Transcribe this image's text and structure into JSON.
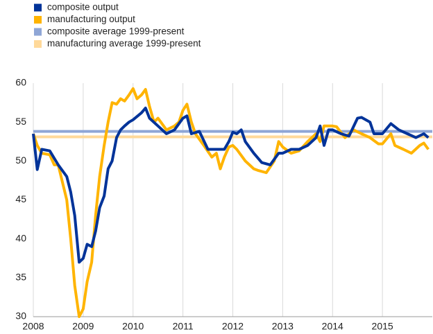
{
  "chart_data": {
    "type": "line",
    "series": [
      {
        "name": "composite output",
        "color": "#003399",
        "x": [
          2008,
          2008.08,
          2008.17,
          2008.33,
          2008.5,
          2008.67,
          2008.75,
          2008.83,
          2008.92,
          2009,
          2009.08,
          2009.17,
          2009.25,
          2009.33,
          2009.42,
          2009.5,
          2009.58,
          2009.67,
          2009.75,
          2009.83,
          2009.92,
          2010,
          2010.17,
          2010.25,
          2010.33,
          2010.5,
          2010.67,
          2010.83,
          2011,
          2011.08,
          2011.17,
          2011.33,
          2011.5,
          2011.67,
          2011.83,
          2011.92,
          2012,
          2012.08,
          2012.17,
          2012.25,
          2012.42,
          2012.58,
          2012.75,
          2012.92,
          2013,
          2013.17,
          2013.33,
          2013.5,
          2013.67,
          2013.75,
          2013.83,
          2013.92,
          2014,
          2014.17,
          2014.33,
          2014.5,
          2014.58,
          2014.75,
          2014.83,
          2015,
          2015.17,
          2015.33,
          2015.5,
          2015.67,
          2015.83,
          2015.92
        ],
        "values": [
          53.5,
          48.9,
          51.5,
          51.3,
          49.5,
          48,
          46,
          43,
          37,
          37.5,
          39.3,
          39,
          41,
          44,
          45.5,
          49,
          50,
          53,
          54,
          54.5,
          55,
          55.3,
          56.2,
          56.8,
          55.5,
          54.5,
          53.5,
          54,
          55.5,
          55.8,
          53.5,
          53.8,
          51.5,
          51.5,
          51.5,
          52.5,
          53.7,
          53.5,
          54,
          52.5,
          51,
          49.8,
          49.5,
          51,
          51,
          51.5,
          51.5,
          52,
          53,
          54.5,
          52,
          54,
          54,
          53.5,
          53.2,
          55.5,
          55.6,
          55,
          53.5,
          53.5,
          54.8,
          54,
          53.5,
          53,
          53.5,
          53
        ]
      },
      {
        "name": "manufacturing output",
        "color": "#ffb400",
        "x": [
          2008,
          2008.08,
          2008.17,
          2008.33,
          2008.42,
          2008.5,
          2008.67,
          2008.75,
          2008.83,
          2008.92,
          2009,
          2009.08,
          2009.17,
          2009.25,
          2009.33,
          2009.42,
          2009.5,
          2009.58,
          2009.67,
          2009.75,
          2009.83,
          2009.92,
          2010,
          2010.08,
          2010.17,
          2010.25,
          2010.33,
          2010.42,
          2010.5,
          2010.67,
          2010.83,
          2010.92,
          2011,
          2011.08,
          2011.17,
          2011.25,
          2011.42,
          2011.58,
          2011.67,
          2011.75,
          2011.83,
          2011.92,
          2012,
          2012.08,
          2012.25,
          2012.42,
          2012.5,
          2012.67,
          2012.83,
          2012.92,
          2013,
          2013.17,
          2013.33,
          2013.5,
          2013.67,
          2013.75,
          2013.83,
          2014,
          2014.08,
          2014.25,
          2014.42,
          2014.58,
          2014.75,
          2014.92,
          2015,
          2015.17,
          2015.25,
          2015.42,
          2015.58,
          2015.75,
          2015.83,
          2015.92
        ],
        "values": [
          53.5,
          52,
          51,
          50.8,
          49.5,
          49.5,
          45,
          40,
          34,
          30,
          31,
          34.5,
          37,
          43,
          48,
          52,
          55,
          57.5,
          57.3,
          58,
          57.7,
          58.5,
          59.3,
          58,
          58.5,
          59.2,
          57,
          55,
          55.5,
          54,
          54.5,
          55,
          56.5,
          57.3,
          55,
          53.5,
          52,
          50.5,
          51,
          49,
          50.5,
          51.8,
          52,
          51.5,
          50,
          49,
          48.8,
          48.5,
          50,
          52.5,
          51.8,
          51,
          51.3,
          52.5,
          53.5,
          52.5,
          54.5,
          54.5,
          54.4,
          53,
          54,
          53.5,
          53,
          52.2,
          52.2,
          53.5,
          52,
          51.5,
          51,
          52,
          52.3,
          51.5
        ]
      }
    ],
    "hlines": [
      {
        "name": "composite average 1999-present",
        "color": "#8fa6d6",
        "value": 53.8
      },
      {
        "name": "manufacturing average 1999-present",
        "color": "#ffd99a",
        "value": 53.1
      }
    ],
    "xlim": [
      2008,
      2016
    ],
    "xticks": [
      2008,
      2009,
      2010,
      2011,
      2012,
      2013,
      2014,
      2015
    ],
    "ylim": [
      30,
      60
    ],
    "yticks": [
      30,
      35,
      40,
      45,
      50,
      55,
      60
    ],
    "grid": "x"
  }
}
